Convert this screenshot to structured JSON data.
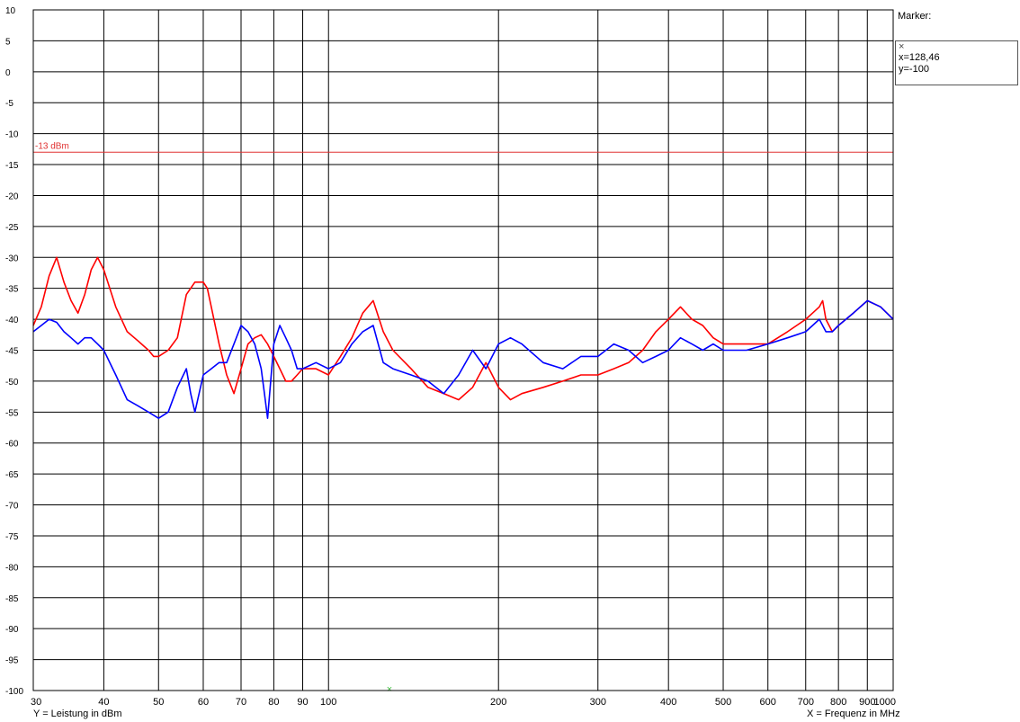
{
  "chart_data": {
    "type": "line",
    "xlabel": "X = Frequenz in MHz",
    "ylabel": "Y = Leistung in dBm",
    "xscale": "log",
    "xlim": [
      30,
      1000
    ],
    "ylim": [
      -100,
      10
    ],
    "x_ticks": [
      30,
      40,
      50,
      60,
      70,
      80,
      90,
      100,
      200,
      300,
      400,
      500,
      600,
      700,
      800,
      900,
      1000
    ],
    "y_ticks": [
      10,
      5,
      0,
      -5,
      -10,
      -15,
      -20,
      -25,
      -30,
      -35,
      -40,
      -45,
      -50,
      -55,
      -60,
      -65,
      -70,
      -75,
      -80,
      -85,
      -90,
      -95,
      -100
    ],
    "grid": true,
    "limit_line": {
      "label": "-13 dBm",
      "y": -13,
      "color": "#e03030"
    },
    "series": [
      {
        "color": "#ff0000",
        "x": [
          30,
          31,
          32,
          33,
          34,
          35,
          36,
          37,
          38,
          39,
          40,
          42,
          44,
          46,
          48,
          49,
          50,
          52,
          54,
          56,
          58,
          60,
          61,
          62,
          64,
          66,
          68,
          70,
          72,
          74,
          76,
          78,
          80,
          82,
          84,
          86,
          88,
          90,
          95,
          100,
          105,
          110,
          115,
          120,
          125,
          130,
          140,
          150,
          160,
          170,
          180,
          190,
          200,
          210,
          220,
          240,
          260,
          280,
          300,
          320,
          340,
          360,
          380,
          400,
          420,
          440,
          460,
          480,
          500,
          550,
          600,
          650,
          700,
          720,
          740,
          750,
          760,
          780,
          800,
          850,
          900,
          950,
          1000
        ],
        "y": [
          -41,
          -38,
          -33,
          -30,
          -34,
          -37,
          -39,
          -36,
          -32,
          -30,
          -32,
          -38,
          -42,
          -43.5,
          -45,
          -46,
          -46,
          -45,
          -43,
          -36,
          -34,
          -34,
          -35,
          -38,
          -44,
          -49,
          -52,
          -48,
          -44,
          -43,
          -42.5,
          -44,
          -46,
          -48,
          -50,
          -50,
          -49,
          -48,
          -48,
          -49,
          -46,
          -43,
          -39,
          -37,
          -42,
          -45,
          -48,
          -51,
          -52,
          -53,
          -51,
          -47,
          -51,
          -53,
          -52,
          -51,
          -50,
          -49,
          -49,
          -48,
          -47,
          -45,
          -42,
          -40,
          -38,
          -40,
          -41,
          -43,
          -44,
          -44,
          -44,
          -42,
          -40,
          -39,
          -38,
          -37,
          -40,
          -42,
          -41,
          -39,
          -37,
          -38,
          -40
        ]
      },
      {
        "color": "#0000ff",
        "x": [
          30,
          31,
          32,
          33,
          34,
          35,
          36,
          37,
          38,
          39,
          40,
          42,
          44,
          46,
          48,
          50,
          52,
          54,
          56,
          57,
          58,
          60,
          62,
          64,
          66,
          68,
          70,
          72,
          74,
          76,
          77,
          78,
          80,
          82,
          84,
          86,
          88,
          90,
          95,
          100,
          105,
          110,
          115,
          120,
          125,
          130,
          140,
          150,
          160,
          170,
          180,
          190,
          200,
          210,
          220,
          240,
          260,
          280,
          300,
          320,
          340,
          360,
          380,
          400,
          420,
          440,
          460,
          480,
          500,
          550,
          600,
          650,
          700,
          720,
          740,
          760,
          780,
          800,
          850,
          900,
          950,
          1000
        ],
        "y": [
          -42,
          -41,
          -40,
          -40.5,
          -42,
          -43,
          -44,
          -43,
          -43,
          -44,
          -45,
          -49,
          -53,
          -54,
          -55,
          -56,
          -55,
          -51,
          -48,
          -52,
          -55,
          -49,
          -48,
          -47,
          -47,
          -44,
          -41,
          -42,
          -44,
          -48,
          -52,
          -56,
          -44,
          -41,
          -43,
          -45,
          -48,
          -48,
          -47,
          -48,
          -47,
          -44,
          -42,
          -41,
          -47,
          -48,
          -49,
          -50,
          -52,
          -49,
          -45,
          -48,
          -44,
          -43,
          -44,
          -47,
          -48,
          -46,
          -46,
          -44,
          -45,
          -47,
          -46,
          -45,
          -43,
          -44,
          -45,
          -44,
          -45,
          -45,
          -44,
          -43,
          -42,
          -41,
          -40,
          -42,
          -42,
          -41,
          -39,
          -37,
          -38,
          -40
        ]
      }
    ]
  },
  "marker": {
    "title": "Marker:",
    "symbol": "×",
    "x_text": "x=128,46",
    "y_text": "y=-100"
  }
}
